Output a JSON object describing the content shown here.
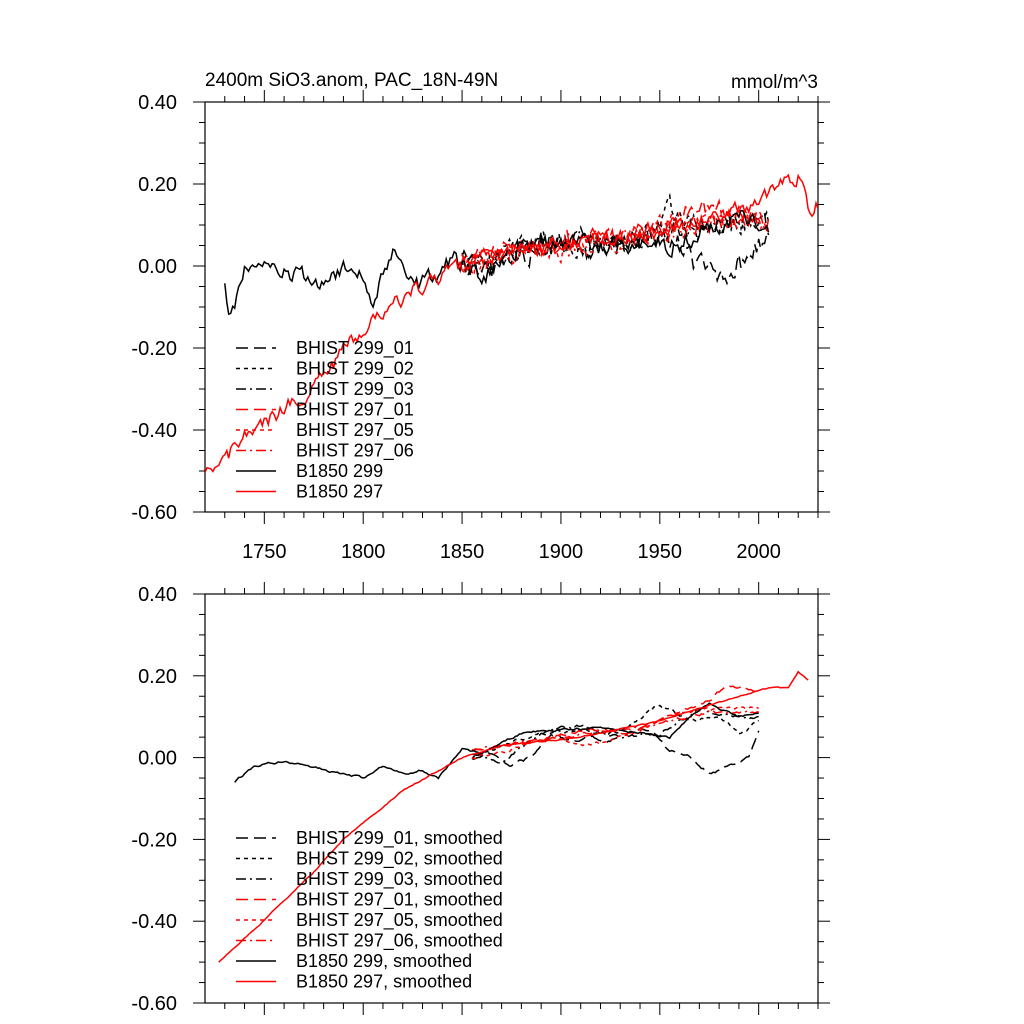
{
  "figure": {
    "title": "2400m SiO3.anom, PAC_18N-49N",
    "units": "mmol/m^3"
  },
  "colors": {
    "black": "#000000",
    "red": "#ff0000"
  },
  "chart_data": [
    {
      "type": "line",
      "title": "2400m SiO3.anom, PAC_18N-49N",
      "units_label": "mmol/m^3",
      "xlabel": "",
      "ylabel": "",
      "xlim": [
        1720,
        2030
      ],
      "ylim": [
        -0.6,
        0.4
      ],
      "x_ticks": [
        1750,
        1800,
        1850,
        1900,
        1950,
        2000
      ],
      "x_tick_labels": [
        "1750",
        "1800",
        "1850",
        "1900",
        "1950",
        "2000"
      ],
      "y_ticks": [
        -0.6,
        -0.4,
        -0.2,
        0.0,
        0.2,
        0.4
      ],
      "y_tick_labels": [
        "-0.60",
        "-0.40",
        "-0.20",
        "0.00",
        "0.20",
        "0.40"
      ],
      "legend_position": "bottom-left",
      "series": [
        {
          "name": "BHIST 299_01",
          "color": "black",
          "dash": "long-dash",
          "x_start": 1850,
          "x_end": 2005,
          "anchors": [
            [
              1850,
              0.02
            ],
            [
              1860,
              -0.02
            ],
            [
              1870,
              0.01
            ],
            [
              1880,
              0.03
            ],
            [
              1890,
              0.04
            ],
            [
              1900,
              0.06
            ],
            [
              1910,
              0.05
            ],
            [
              1920,
              0.04
            ],
            [
              1930,
              0.05
            ],
            [
              1940,
              0.06
            ],
            [
              1950,
              0.07
            ],
            [
              1960,
              0.05
            ],
            [
              1970,
              0.0
            ],
            [
              1980,
              -0.02
            ],
            [
              1990,
              0.0
            ],
            [
              2000,
              0.06
            ],
            [
              2005,
              0.05
            ]
          ],
          "noise": 0.045
        },
        {
          "name": "BHIST 299_02",
          "color": "black",
          "dash": "short-dash",
          "x_start": 1850,
          "x_end": 2005,
          "anchors": [
            [
              1850,
              0.0
            ],
            [
              1870,
              0.03
            ],
            [
              1890,
              0.06
            ],
            [
              1910,
              0.05
            ],
            [
              1930,
              0.06
            ],
            [
              1950,
              0.1
            ],
            [
              1955,
              0.15
            ],
            [
              1970,
              0.08
            ],
            [
              1990,
              0.1
            ],
            [
              2005,
              0.1
            ]
          ],
          "noise": 0.04
        },
        {
          "name": "BHIST 299_03",
          "color": "black",
          "dash": "dash-dot",
          "x_start": 1850,
          "x_end": 2005,
          "anchors": [
            [
              1850,
              0.01
            ],
            [
              1870,
              0.0
            ],
            [
              1890,
              0.05
            ],
            [
              1910,
              0.07
            ],
            [
              1930,
              0.05
            ],
            [
              1950,
              0.08
            ],
            [
              1970,
              0.1
            ],
            [
              1990,
              0.1
            ],
            [
              2005,
              0.1
            ]
          ],
          "noise": 0.04
        },
        {
          "name": "BHIST 297_01",
          "color": "red",
          "dash": "long-dash",
          "x_start": 1850,
          "x_end": 2005,
          "anchors": [
            [
              1850,
              0.0
            ],
            [
              1870,
              0.03
            ],
            [
              1890,
              0.05
            ],
            [
              1910,
              0.07
            ],
            [
              1930,
              0.06
            ],
            [
              1950,
              0.1
            ],
            [
              1970,
              0.14
            ],
            [
              1990,
              0.13
            ],
            [
              2005,
              0.12
            ]
          ],
          "noise": 0.04
        },
        {
          "name": "BHIST 297_05",
          "color": "red",
          "dash": "short-dash",
          "x_start": 1850,
          "x_end": 2005,
          "anchors": [
            [
              1850,
              0.0
            ],
            [
              1870,
              0.02
            ],
            [
              1890,
              0.05
            ],
            [
              1910,
              0.03
            ],
            [
              1930,
              0.06
            ],
            [
              1950,
              0.1
            ],
            [
              1970,
              0.11
            ],
            [
              1990,
              0.12
            ],
            [
              2005,
              0.11
            ]
          ],
          "noise": 0.04
        },
        {
          "name": "BHIST 297_06",
          "color": "red",
          "dash": "dash-dot",
          "x_start": 1850,
          "x_end": 2005,
          "anchors": [
            [
              1850,
              0.01
            ],
            [
              1870,
              0.02
            ],
            [
              1890,
              0.05
            ],
            [
              1910,
              0.06
            ],
            [
              1930,
              0.07
            ],
            [
              1950,
              0.08
            ],
            [
              1970,
              0.1
            ],
            [
              1990,
              0.12
            ],
            [
              2005,
              0.11
            ]
          ],
          "noise": 0.04
        },
        {
          "name": "B1850 299",
          "color": "black",
          "dash": "solid",
          "x_start": 1730,
          "x_end": 2005,
          "anchors": [
            [
              1730,
              -0.06
            ],
            [
              1733,
              -0.13
            ],
            [
              1740,
              0.0
            ],
            [
              1760,
              -0.02
            ],
            [
              1780,
              -0.04
            ],
            [
              1795,
              0.0
            ],
            [
              1805,
              -0.08
            ],
            [
              1815,
              0.05
            ],
            [
              1825,
              -0.05
            ],
            [
              1835,
              -0.03
            ],
            [
              1845,
              0.02
            ],
            [
              1860,
              -0.03
            ],
            [
              1880,
              0.05
            ],
            [
              1900,
              0.06
            ],
            [
              1920,
              0.05
            ],
            [
              1940,
              0.06
            ],
            [
              1960,
              0.05
            ],
            [
              1975,
              0.1
            ],
            [
              1990,
              0.12
            ],
            [
              2005,
              0.1
            ]
          ],
          "noise": 0.035
        },
        {
          "name": "B1850 297",
          "color": "red",
          "dash": "solid",
          "x_start": 1720,
          "x_end": 2030,
          "anchors": [
            [
              1720,
              -0.52
            ],
            [
              1740,
              -0.42
            ],
            [
              1760,
              -0.35
            ],
            [
              1780,
              -0.27
            ],
            [
              1800,
              -0.15
            ],
            [
              1820,
              -0.08
            ],
            [
              1840,
              -0.02
            ],
            [
              1860,
              0.02
            ],
            [
              1880,
              0.04
            ],
            [
              1900,
              0.05
            ],
            [
              1920,
              0.06
            ],
            [
              1940,
              0.08
            ],
            [
              1960,
              0.1
            ],
            [
              1980,
              0.12
            ],
            [
              2000,
              0.16
            ],
            [
              2020,
              0.22
            ],
            [
              2025,
              0.14
            ],
            [
              2030,
              0.15
            ]
          ],
          "noise": 0.03
        }
      ]
    },
    {
      "type": "line",
      "title": "",
      "xlabel": "",
      "ylabel": "",
      "xlim": [
        1720,
        2030
      ],
      "ylim": [
        -0.6,
        0.4
      ],
      "x_ticks": [
        1750,
        1800,
        1850,
        1900,
        1950,
        2000
      ],
      "y_ticks": [
        -0.6,
        -0.4,
        -0.2,
        0.0,
        0.2,
        0.4
      ],
      "y_tick_labels": [
        "-0.60",
        "-0.40",
        "-0.20",
        "0.00",
        "0.20",
        "0.40"
      ],
      "legend_position": "bottom-left",
      "series": [
        {
          "name": "BHIST 299_01, smoothed",
          "color": "black",
          "dash": "long-dash",
          "x_start": 1855,
          "x_end": 2000,
          "anchors": [
            [
              1855,
              0.0
            ],
            [
              1865,
              0.01
            ],
            [
              1875,
              -0.02
            ],
            [
              1885,
              0.0
            ],
            [
              1895,
              0.06
            ],
            [
              1905,
              0.04
            ],
            [
              1915,
              0.05
            ],
            [
              1925,
              0.04
            ],
            [
              1935,
              0.06
            ],
            [
              1945,
              0.07
            ],
            [
              1955,
              0.02
            ],
            [
              1965,
              0.0
            ],
            [
              1975,
              -0.04
            ],
            [
              1985,
              -0.02
            ],
            [
              1995,
              0.0
            ],
            [
              2000,
              0.06
            ]
          ],
          "noise": 0.012
        },
        {
          "name": "BHIST 299_02, smoothed",
          "color": "black",
          "dash": "short-dash",
          "x_start": 1855,
          "x_end": 2000,
          "anchors": [
            [
              1855,
              0.0
            ],
            [
              1870,
              0.03
            ],
            [
              1890,
              0.06
            ],
            [
              1910,
              0.07
            ],
            [
              1930,
              0.06
            ],
            [
              1950,
              0.13
            ],
            [
              1965,
              0.09
            ],
            [
              1980,
              0.1
            ],
            [
              1990,
              0.06
            ],
            [
              2000,
              0.09
            ]
          ],
          "noise": 0.012
        },
        {
          "name": "BHIST 299_03, smoothed",
          "color": "black",
          "dash": "dash-dot",
          "x_start": 1855,
          "x_end": 2000,
          "anchors": [
            [
              1855,
              0.01
            ],
            [
              1870,
              -0.01
            ],
            [
              1890,
              0.06
            ],
            [
              1910,
              0.08
            ],
            [
              1930,
              0.05
            ],
            [
              1950,
              0.06
            ],
            [
              1970,
              0.12
            ],
            [
              1990,
              0.1
            ],
            [
              2000,
              0.1
            ]
          ],
          "noise": 0.012
        },
        {
          "name": "BHIST 297_01, smoothed",
          "color": "red",
          "dash": "long-dash",
          "x_start": 1855,
          "x_end": 2000,
          "anchors": [
            [
              1855,
              0.02
            ],
            [
              1875,
              0.03
            ],
            [
              1895,
              0.05
            ],
            [
              1915,
              0.07
            ],
            [
              1935,
              0.06
            ],
            [
              1955,
              0.1
            ],
            [
              1975,
              0.14
            ],
            [
              1985,
              0.18
            ],
            [
              2000,
              0.16
            ]
          ],
          "noise": 0.01
        },
        {
          "name": "BHIST 297_05, smoothed",
          "color": "red",
          "dash": "short-dash",
          "x_start": 1855,
          "x_end": 2000,
          "anchors": [
            [
              1855,
              0.0
            ],
            [
              1875,
              0.02
            ],
            [
              1895,
              0.05
            ],
            [
              1915,
              0.03
            ],
            [
              1935,
              0.06
            ],
            [
              1955,
              0.1
            ],
            [
              1975,
              0.12
            ],
            [
              2000,
              0.12
            ]
          ],
          "noise": 0.01
        },
        {
          "name": "BHIST 297_06, smoothed",
          "color": "red",
          "dash": "dash-dot",
          "x_start": 1855,
          "x_end": 2000,
          "anchors": [
            [
              1855,
              0.02
            ],
            [
              1875,
              0.03
            ],
            [
              1895,
              0.05
            ],
            [
              1915,
              0.06
            ],
            [
              1935,
              0.07
            ],
            [
              1955,
              0.09
            ],
            [
              1975,
              0.11
            ],
            [
              2000,
              0.11
            ]
          ],
          "noise": 0.01
        },
        {
          "name": "B1850 299, smoothed",
          "color": "black",
          "dash": "solid",
          "x_start": 1735,
          "x_end": 2000,
          "anchors": [
            [
              1735,
              -0.06
            ],
            [
              1745,
              -0.02
            ],
            [
              1760,
              -0.01
            ],
            [
              1780,
              -0.03
            ],
            [
              1800,
              -0.05
            ],
            [
              1810,
              -0.02
            ],
            [
              1820,
              -0.04
            ],
            [
              1830,
              -0.03
            ],
            [
              1838,
              -0.05
            ],
            [
              1850,
              0.02
            ],
            [
              1860,
              0.01
            ],
            [
              1880,
              0.06
            ],
            [
              1900,
              0.07
            ],
            [
              1920,
              0.07
            ],
            [
              1940,
              0.06
            ],
            [
              1955,
              0.05
            ],
            [
              1965,
              0.1
            ],
            [
              1975,
              0.13
            ],
            [
              1990,
              0.1
            ],
            [
              2000,
              0.11
            ]
          ],
          "noise": 0.008
        },
        {
          "name": "B1850 297, smoothed",
          "color": "red",
          "dash": "solid",
          "x_start": 1727,
          "x_end": 2025,
          "anchors": [
            [
              1727,
              -0.5
            ],
            [
              1745,
              -0.42
            ],
            [
              1760,
              -0.35
            ],
            [
              1775,
              -0.28
            ],
            [
              1790,
              -0.2
            ],
            [
              1805,
              -0.14
            ],
            [
              1820,
              -0.08
            ],
            [
              1835,
              -0.04
            ],
            [
              1850,
              0.0
            ],
            [
              1870,
              0.03
            ],
            [
              1890,
              0.04
            ],
            [
              1910,
              0.05
            ],
            [
              1930,
              0.07
            ],
            [
              1950,
              0.09
            ],
            [
              1970,
              0.12
            ],
            [
              1990,
              0.15
            ],
            [
              2005,
              0.17
            ],
            [
              2015,
              0.17
            ],
            [
              2020,
              0.21
            ],
            [
              2025,
              0.19
            ]
          ],
          "noise": 0.004
        }
      ]
    }
  ]
}
